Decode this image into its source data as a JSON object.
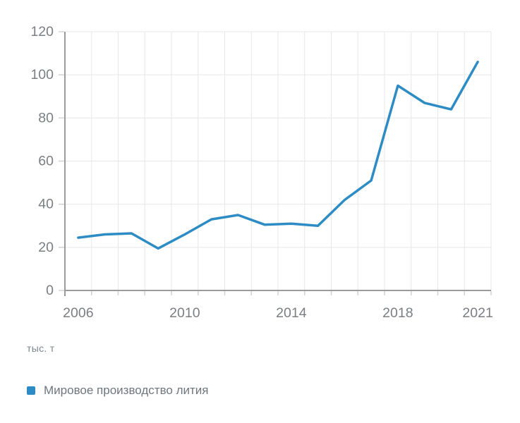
{
  "chart_data": {
    "type": "line",
    "title": "",
    "unit_label": "тыс. т",
    "legend_label": "Мировое производство лития",
    "x": [
      2006,
      2007,
      2008,
      2009,
      2010,
      2011,
      2012,
      2013,
      2014,
      2015,
      2016,
      2017,
      2018,
      2019,
      2020,
      2021
    ],
    "series": [
      {
        "name": "Мировое производство лития",
        "color": "#2e8cc4",
        "values": [
          24.5,
          26,
          26.5,
          19.5,
          26,
          33,
          35,
          30.5,
          31,
          30,
          42,
          51,
          95,
          87,
          84,
          106
        ]
      }
    ],
    "ylabel": "тыс. т",
    "ylim": [
      0,
      120
    ],
    "y_ticks": [
      0,
      20,
      40,
      60,
      80,
      100,
      120
    ],
    "x_tick_labels": [
      "2006",
      "2010",
      "2014",
      "2018",
      "2021"
    ],
    "grid": true,
    "legend_position": "bottom-left",
    "colors": {
      "line": "#2e8cc4",
      "grid": "#e7e7e7",
      "axis": "#9b9b9b",
      "tick": "#d2d2d2",
      "axis_text": "#7b7e82",
      "unit_text": "#7d858b",
      "legend_text": "#6f767c"
    }
  }
}
